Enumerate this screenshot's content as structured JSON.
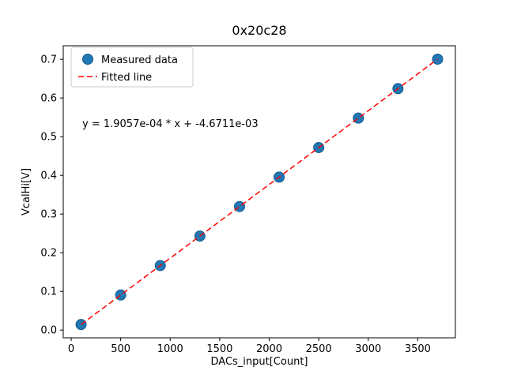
{
  "title": "0x20c28",
  "annotation": "y = 1.9057e-04 * x + -4.6711e-03",
  "legend": {
    "measured": "Measured data",
    "fitted": "Fitted line"
  },
  "colors": {
    "marker_fill": "#1f77b4",
    "marker_edge": "#16598a",
    "fit_line": "#ff0000",
    "axis": "#000000",
    "legend_border": "#cccccc"
  },
  "chart_data": {
    "type": "scatter",
    "title": "0x20c28",
    "xlabel": "DACs_input[Count]",
    "ylabel": "VcalHi[V]",
    "x": [
      100,
      500,
      900,
      1300,
      1700,
      2100,
      2500,
      2900,
      3300,
      3700
    ],
    "y": [
      0.0144,
      0.0906,
      0.1668,
      0.2431,
      0.3193,
      0.3955,
      0.4718,
      0.548,
      0.6242,
      0.7004
    ],
    "fit": {
      "slope": 0.00019057,
      "intercept": -0.0046711,
      "x_start": 100,
      "x_end": 3700
    },
    "xlim": [
      -80,
      3880
    ],
    "ylim": [
      -0.02,
      0.735
    ],
    "xticks": [
      0,
      500,
      1000,
      1500,
      2000,
      2500,
      3000,
      3500
    ],
    "yticks": [
      0.0,
      0.1,
      0.2,
      0.3,
      0.4,
      0.5,
      0.6,
      0.7
    ],
    "legend_position": "upper left",
    "grid": false
  }
}
